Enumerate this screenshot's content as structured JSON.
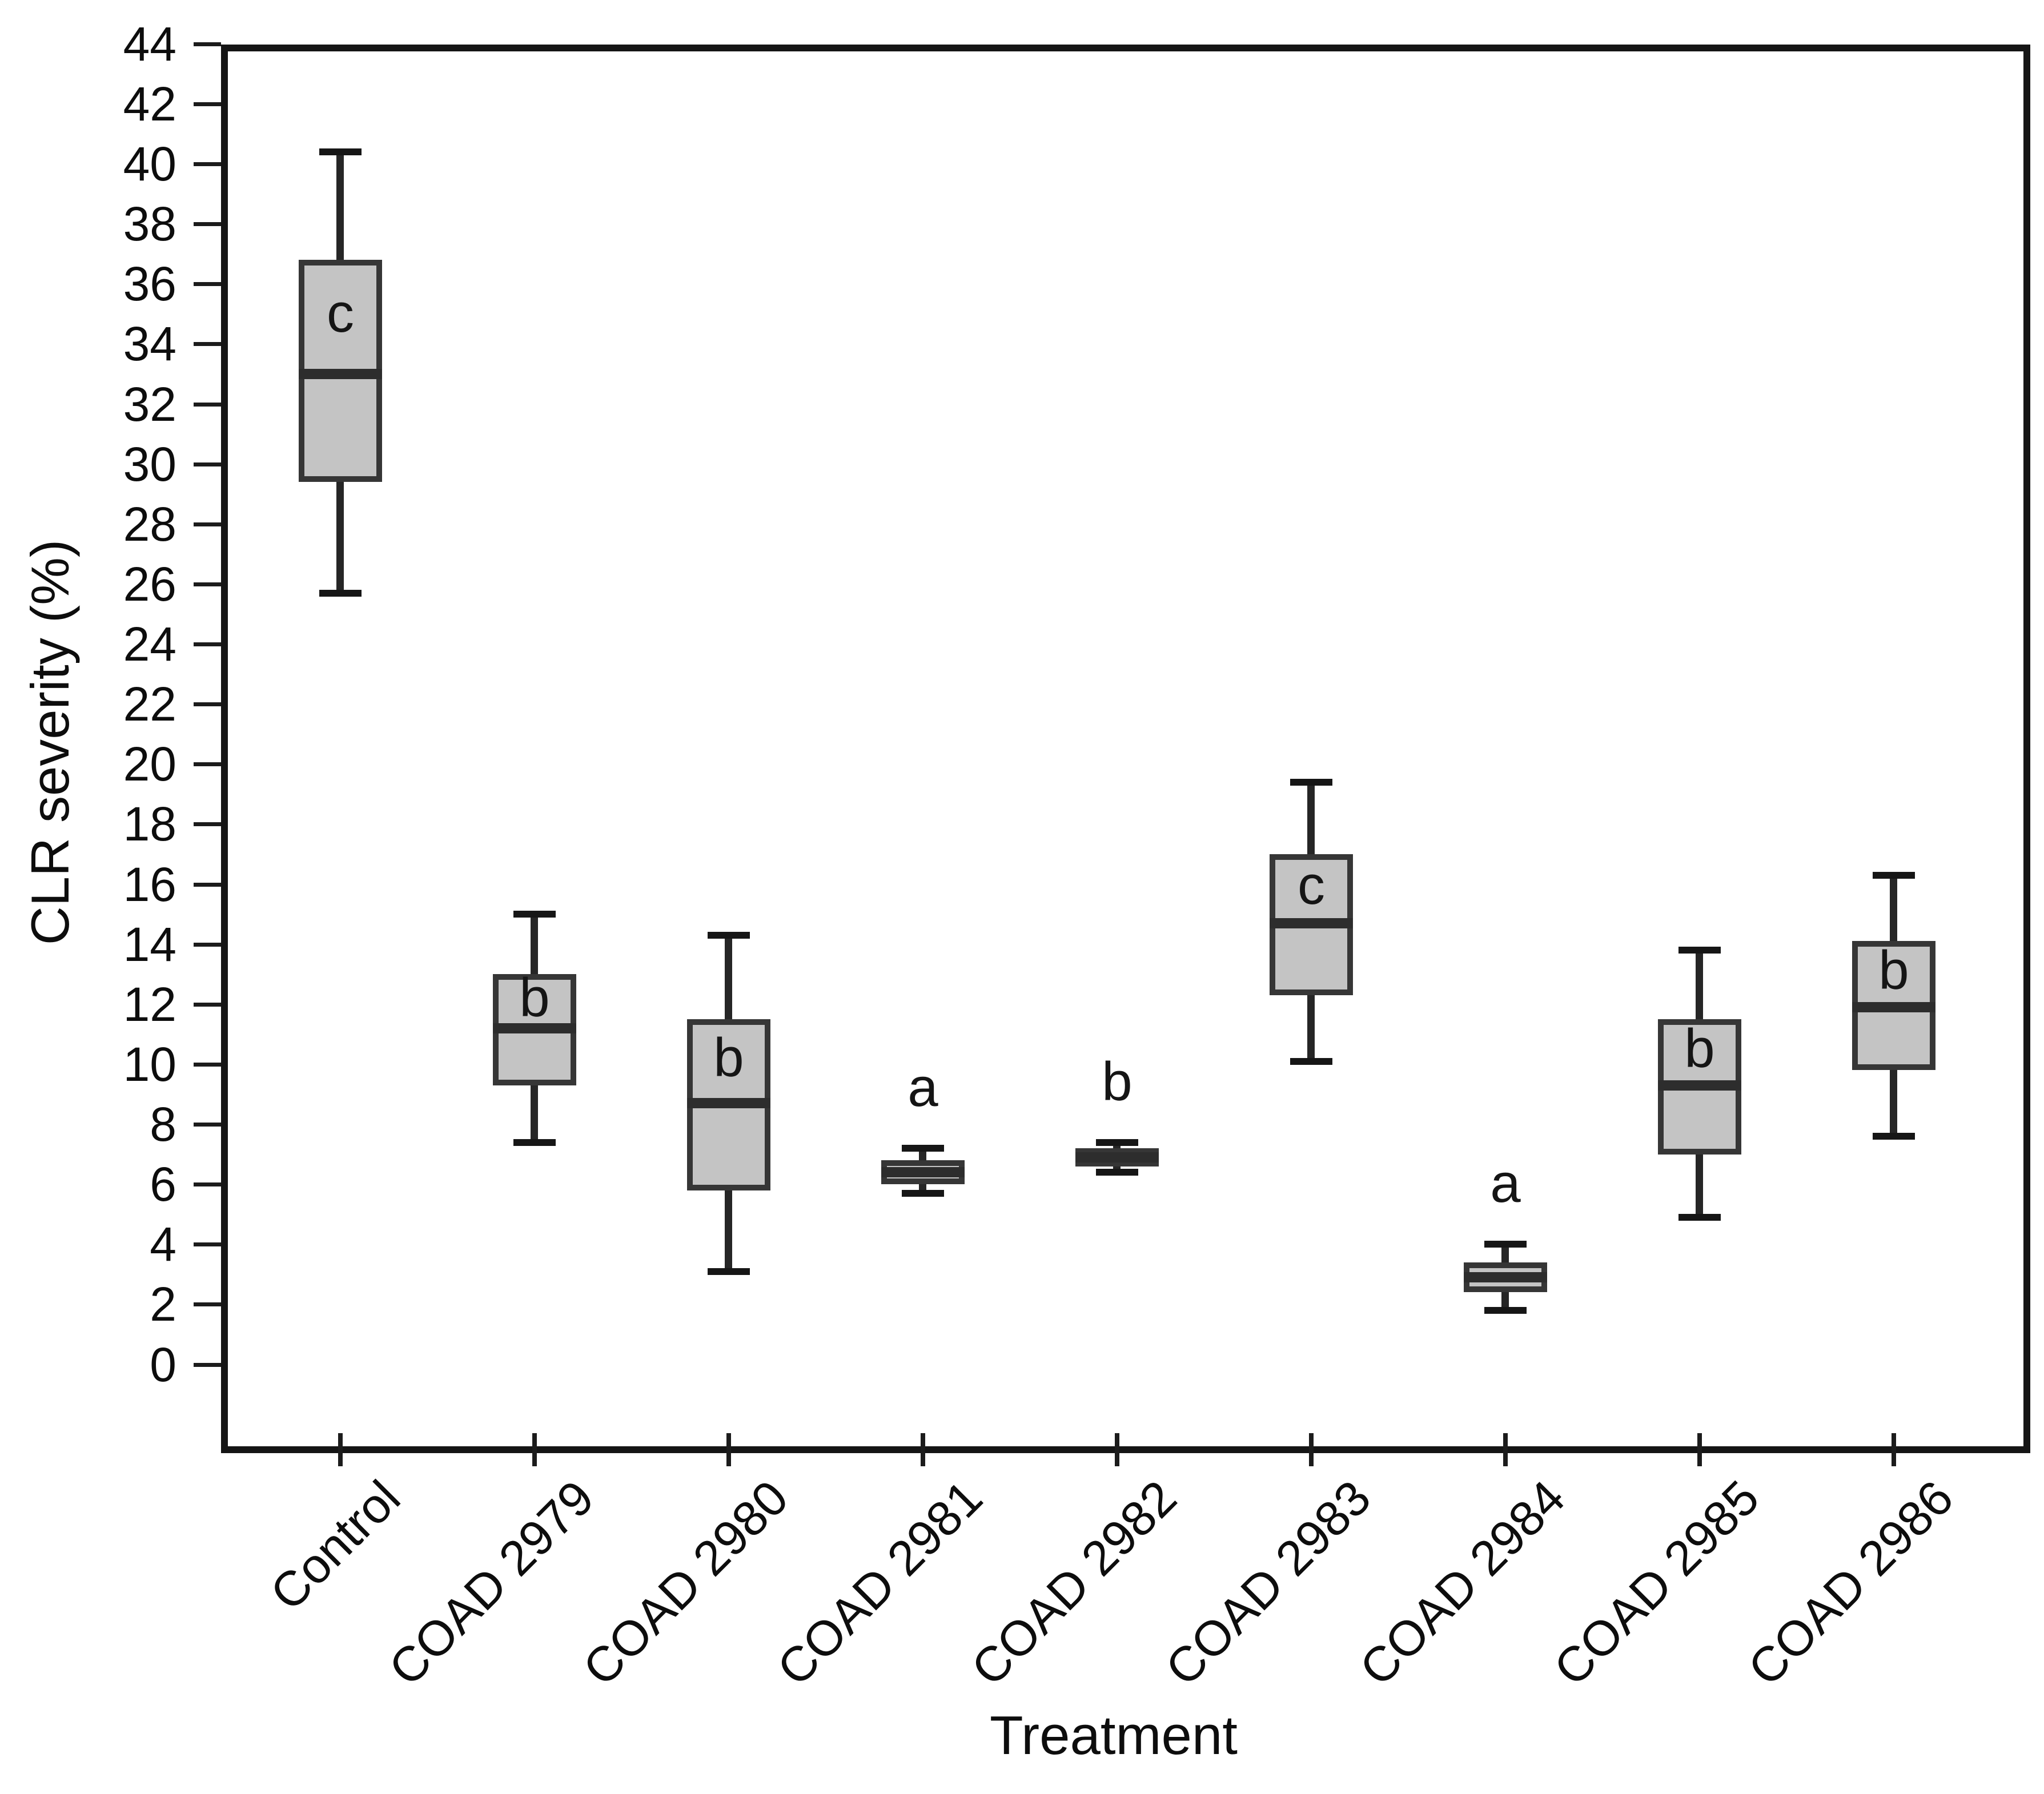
{
  "chart_data": {
    "type": "box",
    "title": "",
    "xlabel": "Treatment",
    "ylabel": "CLR severity (%)",
    "ylim": [
      -2.7,
      43.75
    ],
    "yticks": [
      0,
      2,
      4,
      6,
      8,
      10,
      12,
      14,
      16,
      18,
      20,
      22,
      24,
      26,
      28,
      30,
      32,
      34,
      36,
      38,
      40,
      42,
      44
    ],
    "grid": false,
    "legend": "none",
    "categories": [
      "Control",
      "COAD 2979",
      "COAD 2980",
      "COAD 2981",
      "COAD 2982",
      "COAD 2983",
      "COAD 2984",
      "COAD 2985",
      "COAD 2986"
    ],
    "series": [
      {
        "name": "Control",
        "whisker_low": 25.7,
        "q1": 29.4,
        "median": 33.0,
        "q3": 36.8,
        "whisker_high": 40.4,
        "sig_letter": "c",
        "letter_pos": "inside"
      },
      {
        "name": "COAD 2979",
        "whisker_low": 7.4,
        "q1": 9.3,
        "median": 11.2,
        "q3": 13.0,
        "whisker_high": 15.0,
        "sig_letter": "b",
        "letter_pos": "inside"
      },
      {
        "name": "COAD 2980",
        "whisker_low": 3.1,
        "q1": 5.8,
        "median": 8.7,
        "q3": 11.5,
        "whisker_high": 14.3,
        "sig_letter": "b",
        "letter_pos": "inside"
      },
      {
        "name": "COAD 2981",
        "whisker_low": 5.7,
        "q1": 6.0,
        "median": 6.4,
        "q3": 6.8,
        "whisker_high": 7.2,
        "sig_letter": "a",
        "letter_pos": "above"
      },
      {
        "name": "COAD 2982",
        "whisker_low": 6.4,
        "q1": 6.6,
        "median": 6.9,
        "q3": 7.2,
        "whisker_high": 7.4,
        "sig_letter": "b",
        "letter_pos": "above"
      },
      {
        "name": "COAD 2983",
        "whisker_low": 10.1,
        "q1": 12.3,
        "median": 14.7,
        "q3": 17.0,
        "whisker_high": 19.4,
        "sig_letter": "c",
        "letter_pos": "inside"
      },
      {
        "name": "COAD 2984",
        "whisker_low": 1.8,
        "q1": 2.4,
        "median": 2.9,
        "q3": 3.4,
        "whisker_high": 4.0,
        "sig_letter": "a",
        "letter_pos": "above"
      },
      {
        "name": "COAD 2985",
        "whisker_low": 4.9,
        "q1": 7.0,
        "median": 9.3,
        "q3": 11.5,
        "whisker_high": 13.8,
        "sig_letter": "b",
        "letter_pos": "inside"
      },
      {
        "name": "COAD 2986",
        "whisker_low": 7.6,
        "q1": 9.8,
        "median": 11.9,
        "q3": 14.1,
        "whisker_high": 16.3,
        "sig_letter": "b",
        "letter_pos": "inside"
      }
    ],
    "colors": {
      "box_fill": "#c4c4c4",
      "box_border": "#363636",
      "median": "#2d2d2d",
      "whisker": "#262626",
      "axis": "#151515",
      "text": "#0d0d0d"
    }
  }
}
